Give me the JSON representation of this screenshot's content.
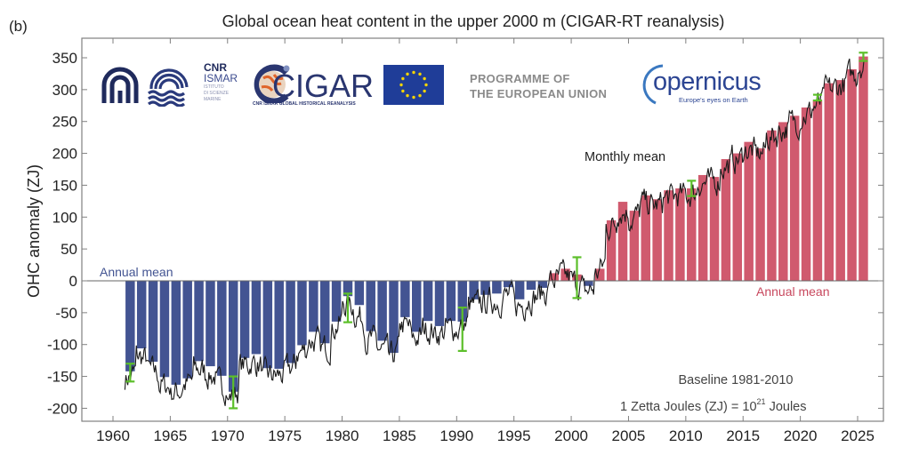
{
  "panel_label": "(b)",
  "logos": {
    "cnr": "CNR",
    "ismar": "ISMAR",
    "ismar_sub": [
      "ISTITUTO",
      "DI SCIENZE",
      "MARINE"
    ],
    "cigar": "CIGAR",
    "cigar_sub": "CNR ISMAR GLOBAL HISTORICAL REANALYSIS",
    "programme_line1": "PROGRAMME OF",
    "programme_line2": "THE EUROPEAN UNION",
    "copernicus": "opernicus",
    "copernicus_tagline": "Europe's eyes on Earth"
  },
  "colors": {
    "positive_bar": "#d05a6e",
    "negative_bar": "#435492",
    "monthly_line": "#1a1a1a",
    "error_bar": "#5cbf2a",
    "annual_label_neg": "#435492",
    "annual_label_pos": "#c8485e",
    "axis": "#808080",
    "text": "#222222"
  },
  "chart_data": {
    "type": "bar",
    "title": "Global ocean heat content in the upper 2000 m (CIGAR-RT reanalysis)",
    "xlabel": "",
    "ylabel": "OHC anomaly (ZJ)",
    "xlim": [
      1957.5,
      2027
    ],
    "ylim": [
      -215,
      372
    ],
    "x_ticks": [
      1960,
      1965,
      1970,
      1975,
      1980,
      1985,
      1990,
      1995,
      2000,
      2005,
      2010,
      2015,
      2020,
      2025
    ],
    "y_ticks": [
      -200,
      -150,
      -100,
      -50,
      0,
      50,
      100,
      150,
      200,
      250,
      300,
      350
    ],
    "grid": false,
    "annotations": {
      "annual_mean_left": "Annual mean",
      "annual_mean_right": "Annual mean",
      "monthly_mean": "Monthly mean",
      "baseline": "Baseline 1981-2010",
      "unit_note_prefix": "1 Zetta Joules (ZJ) = 10",
      "unit_note_exp": "21",
      "unit_note_suffix": " Joules"
    },
    "series": [
      {
        "name": "Annual mean",
        "years": [
          1961,
          1962,
          1963,
          1964,
          1965,
          1966,
          1967,
          1968,
          1969,
          1970,
          1971,
          1972,
          1973,
          1974,
          1975,
          1976,
          1977,
          1978,
          1979,
          1980,
          1981,
          1982,
          1983,
          1984,
          1985,
          1986,
          1987,
          1988,
          1989,
          1990,
          1991,
          1992,
          1993,
          1994,
          1995,
          1996,
          1997,
          1998,
          1999,
          2000,
          2001,
          2002,
          2003,
          2004,
          2005,
          2006,
          2007,
          2008,
          2009,
          2010,
          2011,
          2012,
          2013,
          2014,
          2015,
          2016,
          2017,
          2018,
          2019,
          2020,
          2021,
          2022,
          2023,
          2024,
          2025
        ],
        "values": [
          -142,
          -106,
          -127,
          -151,
          -163,
          -153,
          -126,
          -134,
          -149,
          -174,
          -121,
          -115,
          -137,
          -138,
          -129,
          -101,
          -80,
          -98,
          -64,
          -24,
          -38,
          -79,
          -94,
          -113,
          -57,
          -80,
          -63,
          -71,
          -63,
          -64,
          -29,
          -22,
          -20,
          -10,
          -29,
          -14,
          -11,
          12,
          19,
          10,
          -8,
          19,
          95,
          124,
          110,
          134,
          128,
          142,
          145,
          145,
          166,
          163,
          191,
          200,
          218,
          208,
          236,
          249,
          259,
          272,
          284,
          310,
          315,
          332,
          352
        ]
      },
      {
        "name": "Monthly mean",
        "note": "monthly series fluctuates around annual means (approx. +/-25 ZJ)",
        "start": 1961.0,
        "end": 2025.5
      }
    ],
    "error_bars": [
      {
        "year": 1961,
        "low": -158,
        "high": -130
      },
      {
        "year": 1970,
        "low": -200,
        "high": -150
      },
      {
        "year": 1980,
        "low": -65,
        "high": -20
      },
      {
        "year": 1990,
        "low": -110,
        "high": -42
      },
      {
        "year": 2000,
        "low": -27,
        "high": 37
      },
      {
        "year": 2010,
        "low": 133,
        "high": 157
      },
      {
        "year": 2021,
        "low": 283,
        "high": 292
      },
      {
        "year": 2025,
        "low": 345,
        "high": 358
      }
    ]
  }
}
